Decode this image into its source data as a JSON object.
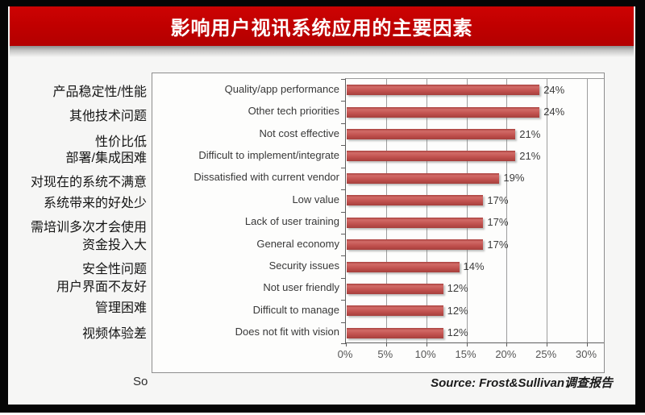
{
  "title": "影响用户视讯系统应用的主要因素",
  "partial_text": "So",
  "source": "Source: Frost&Sullivan调查报告",
  "colors": {
    "banner_red": "#C00000",
    "bar_red": "#C0504D",
    "frame_black": "#060606",
    "background": "#F6F6F5"
  },
  "chart_data": {
    "type": "bar",
    "orientation": "horizontal",
    "title": "影响用户视讯系统应用的主要因素",
    "categories": [
      "Quality/app performance",
      "Other tech priorities",
      "Not cost effective",
      "Difficult to implement/integrate",
      "Dissatisfied with current vendor",
      "Low value",
      "Lack of user training",
      "General economy",
      "Security issues",
      "Not user friendly",
      "Difficult to manage",
      "Does not fit with vision"
    ],
    "categories_cn": [
      "产品稳定性/性能",
      "其他技术问题",
      "性价比低",
      "部署/集成困难",
      "对现在的系统不满意",
      "系统带来的好处少",
      "需培训多次才会使用",
      "资金投入大",
      "安全性问题",
      "用户界面不友好",
      "管理困难",
      "视频体验差"
    ],
    "values": [
      24,
      24,
      21,
      21,
      19,
      17,
      17,
      17,
      14,
      12,
      12,
      12
    ],
    "value_labels": [
      "24%",
      "24%",
      "21%",
      "21%",
      "19%",
      "17%",
      "17%",
      "17%",
      "14%",
      "12%",
      "12%",
      "12%"
    ],
    "x_ticks": [
      "0%",
      "5%",
      "10%",
      "15%",
      "20%",
      "25%",
      "30%"
    ],
    "xlim": [
      0,
      32
    ],
    "grid": true,
    "legend": "none"
  }
}
